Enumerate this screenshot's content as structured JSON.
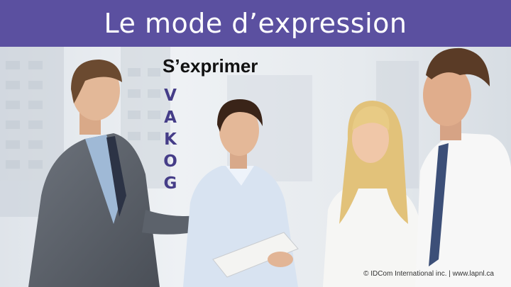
{
  "slide": {
    "title": "Le mode d’expression",
    "subtitle": "S’exprimer",
    "vakog": [
      "V",
      "A",
      "K",
      "O",
      "G"
    ],
    "copyright": "© IDCom International inc. | www.lapnl.ca"
  },
  "colors": {
    "title_bar": "#5b50a0",
    "title_text": "#ffffff",
    "vakog_letters": "#453d88",
    "subtitle_text": "#111111"
  }
}
